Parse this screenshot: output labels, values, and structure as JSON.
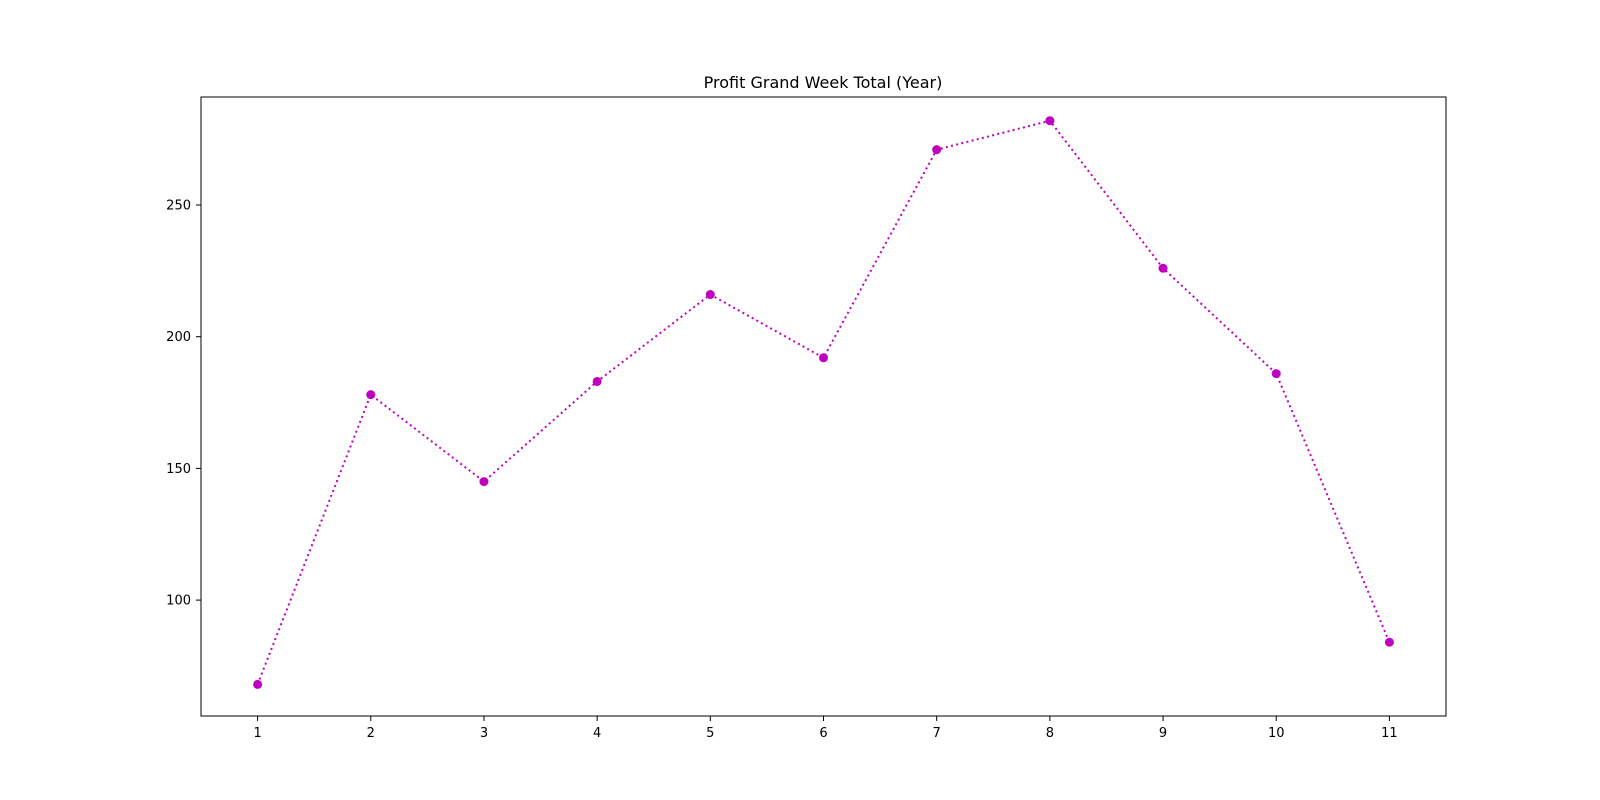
{
  "chart_data": {
    "type": "line",
    "title": "Profit Grand Week Total (Year)",
    "xlabel": "",
    "ylabel": "",
    "x": [
      1,
      2,
      3,
      4,
      5,
      6,
      7,
      8,
      9,
      10,
      11
    ],
    "x_tick_labels": [
      "1",
      "2",
      "3",
      "4",
      "5",
      "6",
      "7",
      "8",
      "9",
      "10",
      "11"
    ],
    "xlim": [
      0.5,
      11.5
    ],
    "y_ticks": [
      100,
      150,
      200,
      250
    ],
    "y_tick_labels": [
      "100",
      "150",
      "200",
      "250"
    ],
    "ylim": [
      56,
      291
    ],
    "grid": false,
    "series": [
      {
        "values": [
          68,
          178,
          145,
          183,
          216,
          192,
          271,
          282,
          226,
          186,
          84
        ],
        "color": "#bf00bf",
        "line_style": "dotted",
        "marker": "circle"
      }
    ]
  }
}
